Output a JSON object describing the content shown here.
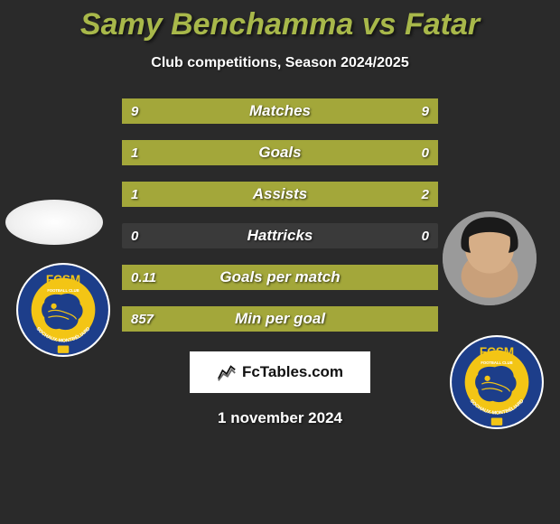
{
  "title_color": "#a8b84a",
  "background_color": "#2a2a2a",
  "title": "Samy Benchamma vs Fatar",
  "subtitle": "Club competitions, Season 2024/2025",
  "date": "1 november 2024",
  "fctables_label": "FcTables.com",
  "bar_color_left": "#a3a73a",
  "bar_color_right": "#a3a73a",
  "track_color": "#3a3a3a",
  "stat_fontsize": 17,
  "value_fontsize": 15,
  "stats": [
    {
      "label": "Matches",
      "left_val": "9",
      "right_val": "9",
      "left_pct": 50,
      "right_pct": 50
    },
    {
      "label": "Goals",
      "left_val": "1",
      "right_val": "0",
      "left_pct": 100,
      "right_pct": 0
    },
    {
      "label": "Assists",
      "left_val": "1",
      "right_val": "2",
      "left_pct": 33,
      "right_pct": 67
    },
    {
      "label": "Hattricks",
      "left_val": "0",
      "right_val": "0",
      "left_pct": 0,
      "right_pct": 0
    },
    {
      "label": "Goals per match",
      "left_val": "0.11",
      "right_val": "",
      "left_pct": 100,
      "right_pct": 0
    },
    {
      "label": "Min per goal",
      "left_val": "857",
      "right_val": "",
      "left_pct": 100,
      "right_pct": 0
    }
  ],
  "badge": {
    "outer_ring": "#1d3e8a",
    "inner": "#f3c515",
    "text_top": "FCSM",
    "text_mid": "FOOTBALL CLUB",
    "text_bot": "SOCHAUX-MONTBÉLIARD"
  }
}
